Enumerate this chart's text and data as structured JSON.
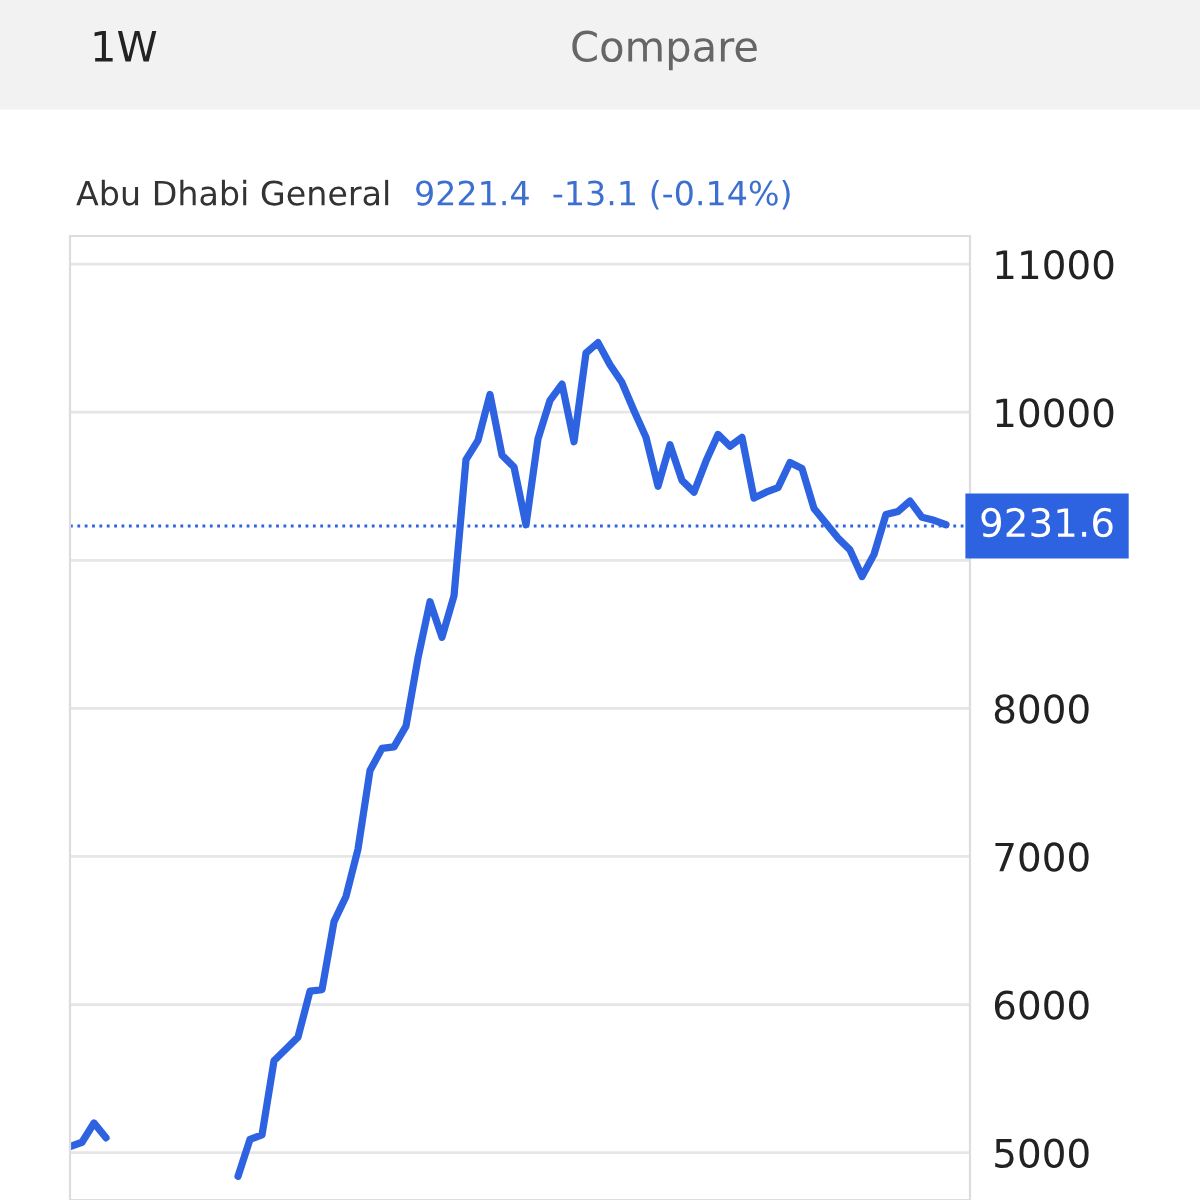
{
  "chart_data": {
    "type": "line",
    "title": "Abu Dhabi General",
    "subtitle": "9221.4  -13.1 (-0.14%)",
    "annotations": [
      "1W",
      "Compare"
    ],
    "categories": [
      null,
      null,
      null,
      null,
      null,
      null,
      null,
      null,
      null,
      null,
      null,
      null,
      null,
      null,
      null,
      null,
      null,
      null,
      null,
      null,
      null,
      null,
      null,
      null,
      null,
      null,
      null,
      null,
      null,
      null,
      null,
      null,
      null,
      null,
      null,
      null,
      null,
      null,
      null,
      null,
      null,
      null,
      null,
      null,
      null,
      null,
      null,
      null,
      null,
      null,
      null,
      null,
      null,
      null,
      null,
      null,
      null,
      null,
      null,
      null,
      null,
      null,
      null,
      null,
      null,
      null,
      null,
      null,
      null,
      null,
      null,
      null,
      null,
      null
    ],
    "series": [
      {
        "color": "#2d62e0",
        "values": [
          5040,
          5070,
          5200,
          5100,
          null,
          null,
          null,
          null,
          null,
          null,
          null,
          null,
          null,
          null,
          null,
          null,
          null,
          null,
          null,
          null,
          null,
          null,
          null,
          null,
          null,
          null,
          null,
          null,
          null,
          null,
          null,
          null,
          null,
          null,
          null,
          null,
          null,
          null,
          null,
          null,
          null,
          null,
          null,
          null,
          null,
          null,
          null,
          null,
          null,
          null,
          null,
          null,
          null,
          null,
          null,
          null,
          null,
          null,
          null,
          null,
          null,
          null,
          null,
          null,
          null,
          null,
          null,
          null,
          null,
          null,
          null,
          null,
          null,
          null
        ]
      },
      {
        "color": "#2d62e0",
        "values": [
          null,
          null,
          null,
          null,
          null,
          null,
          null,
          null,
          null,
          null,
          null,
          null,
          null,
          null,
          4840,
          5090,
          5120,
          5620,
          5700,
          5780,
          6090,
          6100,
          6560,
          6730,
          7050,
          7580,
          7730,
          7740,
          7880,
          8340,
          8720,
          8480,
          8760,
          9680,
          9810,
          10120,
          9710,
          9630,
          9240,
          9820,
          10080,
          10190,
          9800,
          10400,
          10470,
          10320,
          10200,
          10010,
          9830,
          9500,
          9780,
          9540,
          9460,
          9670,
          9850,
          9770,
          9830,
          9420,
          9460,
          9490,
          9660,
          9620,
          9350,
          9250,
          9150,
          9070,
          8890,
          9040,
          9310,
          9330,
          9400,
          9290,
          9270,
          9240
        ]
      }
    ],
    "ylim": [
      4680,
      11190
    ],
    "yticks": [
      5000,
      6000,
      7000,
      8000,
      {
        "value": 9000,
        "label": null
      },
      10000,
      11000
    ],
    "grid": "y",
    "ref_lines": [
      {
        "axis": "y",
        "value": 9231.6,
        "label": "9231.6",
        "color": "#2d62e0",
        "line_style": "dotted"
      }
    ]
  }
}
